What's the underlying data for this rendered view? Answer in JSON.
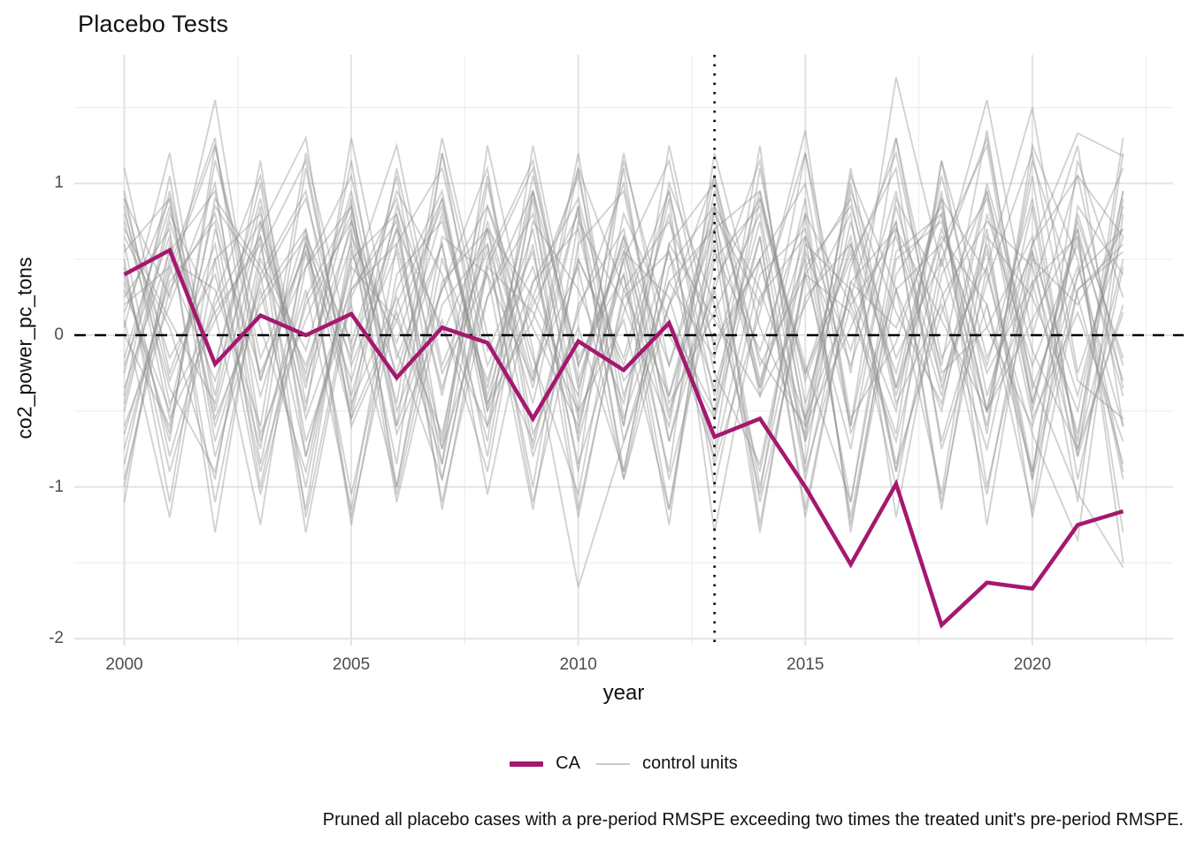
{
  "title": "Placebo Tests",
  "axes": {
    "x_label": "year",
    "y_label": "co2_power_pc_tons",
    "x_tick_labels": [
      "2000",
      "2005",
      "2010",
      "2015",
      "2020"
    ],
    "x_tick_years": [
      2000,
      2005,
      2010,
      2015,
      2020
    ],
    "x_minor_years": [
      2002.5,
      2007.5,
      2012.5,
      2017.5,
      2022.5
    ],
    "y_tick_labels": [
      "1",
      "0",
      "-1",
      "-2"
    ],
    "y_tick_values": [
      1,
      0,
      -1,
      -2
    ],
    "y_minor_values": [
      1.5,
      0.5,
      -0.5,
      -1.5
    ]
  },
  "legend": {
    "treated_label": "CA",
    "control_label": "control units"
  },
  "caption": "Pruned all placebo cases with a pre-period RMSPE exceeding two times the treated unit's pre-period RMSPE.",
  "colors": {
    "treated": "#A5186F",
    "control": "#8F8F8F",
    "control_opacity": 0.42,
    "grid_major": "#E3E3E3",
    "grid_minor": "#F0F0F0",
    "reference_line": "#000000",
    "tick_text": "#4D4D4D",
    "background": "#FFFFFF"
  },
  "chart_data": {
    "type": "line",
    "title": "Placebo Tests",
    "xlabel": "year",
    "ylabel": "co2_power_pc_tons",
    "xlim": [
      1998.9,
      2023.1
    ],
    "ylim": [
      -2.045,
      1.847
    ],
    "grid": true,
    "legend_position": "bottom",
    "hline_y": 0,
    "hline_style": "dashed",
    "vline_x": 2013,
    "vline_style": "dotted",
    "x": [
      2000,
      2001,
      2002,
      2003,
      2004,
      2005,
      2006,
      2007,
      2008,
      2009,
      2010,
      2011,
      2012,
      2013,
      2014,
      2015,
      2016,
      2017,
      2018,
      2019,
      2020,
      2021,
      2022
    ],
    "treated_series": {
      "name": "CA",
      "values": [
        0.4,
        0.56,
        -0.19,
        0.13,
        0.0,
        0.14,
        -0.28,
        0.05,
        -0.05,
        -0.55,
        -0.04,
        -0.23,
        0.08,
        -0.67,
        -0.55,
        -1.0,
        -1.51,
        -0.98,
        -1.91,
        -1.63,
        -1.67,
        -1.25,
        -1.16
      ]
    },
    "control_series": [
      {
        "name": "control-01",
        "values": [
          0.15,
          0.9,
          -0.6,
          0.3,
          -1.0,
          0.55,
          -0.25,
          0.8,
          -0.45,
          0.1,
          1.1,
          -0.7,
          0.35,
          -0.15,
          0.95,
          -0.55,
          0.25,
          1.3,
          -0.35,
          0.6,
          -0.9,
          0.4,
          0.7
        ]
      },
      {
        "name": "control-02",
        "values": [
          -0.75,
          0.4,
          1.25,
          -0.3,
          0.7,
          -1.2,
          0.2,
          0.9,
          -0.5,
          1.05,
          -0.2,
          0.6,
          -0.95,
          0.3,
          1.15,
          -0.6,
          0.05,
          0.75,
          -1.1,
          0.45,
          1.5,
          -0.25,
          0.65
        ]
      },
      {
        "name": "control-03",
        "values": [
          0.9,
          -0.3,
          0.5,
          -1.05,
          0.25,
          0.85,
          -0.6,
          1.2,
          -0.1,
          0.55,
          -0.85,
          0.15,
          0.95,
          -0.4,
          0.65,
          -1.15,
          0.35,
          0.05,
          0.8,
          -0.65,
          1.25,
          0.5,
          -0.95
        ]
      },
      {
        "name": "control-04",
        "values": [
          0.45,
          -0.9,
          0.2,
          0.75,
          -0.5,
          1.3,
          -0.15,
          0.6,
          -1.05,
          0.35,
          0.9,
          -0.3,
          0.1,
          -0.8,
          0.5,
          1.0,
          -0.6,
          0.85,
          -0.2,
          1.35,
          -0.45,
          0.7,
          -1.5
        ]
      },
      {
        "name": "control-05",
        "values": [
          -0.2,
          0.65,
          -1.1,
          0.4,
          0.95,
          -0.55,
          0.15,
          -0.85,
          0.7,
          0.25,
          -0.4,
          1.1,
          -0.7,
          0.55,
          -0.1,
          0.8,
          -1.25,
          0.3,
          0.6,
          -0.5,
          1.05,
          -0.8,
          0.2
        ]
      },
      {
        "name": "control-06",
        "values": [
          0.7,
          0.1,
          -0.45,
          0.85,
          -1.2,
          0.3,
          0.6,
          -0.7,
          1.0,
          -0.25,
          0.45,
          -0.95,
          0.2,
          0.75,
          -0.35,
          1.2,
          -0.55,
          -0.05,
          0.9,
          -1.0,
          0.35,
          0.65,
          -0.3
        ]
      },
      {
        "name": "control-07",
        "values": [
          -0.95,
          0.3,
          0.8,
          -0.4,
          0.6,
          -0.15,
          1.05,
          -0.75,
          0.25,
          0.95,
          -0.5,
          0.1,
          -1.15,
          0.5,
          0.85,
          -0.25,
          0.65,
          -0.9,
          1.15,
          0.05,
          -0.6,
          0.4,
          1.1
        ]
      },
      {
        "name": "control-08",
        "values": [
          0.35,
          -0.65,
          1.15,
          0.05,
          -0.9,
          0.5,
          0.8,
          -0.35,
          0.6,
          -1.1,
          0.2,
          0.7,
          -0.55,
          1.05,
          -0.2,
          0.4,
          -0.75,
          0.9,
          0.3,
          -1.05,
          0.55,
          -0.4,
          0.85
        ]
      },
      {
        "name": "control-09",
        "values": [
          -0.5,
          0.75,
          -0.2,
          1.0,
          -0.7,
          0.2,
          -1.0,
          0.65,
          0.4,
          -0.3,
          0.85,
          -0.6,
          1.25,
          -0.1,
          0.5,
          -0.85,
          0.95,
          0.15,
          -0.45,
          0.7,
          -1.2,
          0.3,
          0.6
        ]
      },
      {
        "name": "control-10",
        "values": [
          0.8,
          -0.15,
          0.4,
          -0.75,
          1.1,
          -0.4,
          0.7,
          0.05,
          -0.6,
          0.9,
          -1.15,
          0.25,
          0.55,
          -0.35,
          0.75,
          -0.95,
          0.45,
          1.2,
          -0.25,
          0.05,
          0.65,
          -0.7,
          1.3
        ]
      },
      {
        "name": "control-11",
        "values": [
          0.05,
          1.2,
          -0.5,
          0.65,
          -0.25,
          0.9,
          -1.05,
          0.35,
          0.7,
          -0.8,
          0.15,
          1.0,
          -0.4,
          0.6,
          -1.3,
          0.45,
          0.85,
          -0.15,
          0.5,
          -0.6,
          1.15,
          0.25,
          -0.85
        ]
      },
      {
        "name": "control-12",
        "values": [
          -0.35,
          0.55,
          0.95,
          -0.7,
          0.3,
          -1.15,
          0.6,
          1.1,
          -0.2,
          0.45,
          -0.65,
          0.8,
          0.1,
          -0.5,
          1.25,
          -0.9,
          0.2,
          0.65,
          -0.4,
          1.0,
          -0.1,
          -0.75,
          0.5
        ]
      },
      {
        "name": "control-13",
        "values": [
          0.6,
          -0.8,
          0.25,
          1.05,
          -0.45,
          0.75,
          -0.1,
          -0.95,
          0.5,
          1.15,
          -0.3,
          0.65,
          -0.7,
          0.35,
          0.9,
          -0.2,
          -1.1,
          0.55,
          0.8,
          -0.5,
          0.3,
          1.25,
          -0.6
        ]
      },
      {
        "name": "control-14",
        "values": [
          -1.0,
          0.45,
          -0.3,
          0.7,
          1.3,
          -0.6,
          0.1,
          0.85,
          -0.4,
          0.6,
          -1.2,
          0.3,
          0.75,
          -0.05,
          0.5,
          -0.7,
          1.1,
          -0.35,
          0.65,
          0.2,
          -0.9,
          0.8,
          -0.2
        ]
      },
      {
        "name": "control-15",
        "values": [
          0.25,
          0.7,
          -1.3,
          0.5,
          -0.1,
          0.95,
          -0.5,
          0.3,
          1.1,
          -0.65,
          0.05,
          -0.9,
          0.6,
          1.0,
          -0.4,
          0.2,
          0.8,
          -1.2,
          0.4,
          0.9,
          -0.55,
          0.15,
          -0.7
        ]
      },
      {
        "name": "control-16",
        "values": [
          0.95,
          -0.45,
          0.15,
          0.6,
          -0.8,
          0.35,
          1.25,
          -0.2,
          0.55,
          -1.0,
          0.75,
          0.2,
          -0.6,
          0.95,
          -0.3,
          0.5,
          -1.1,
          0.7,
          0.1,
          -0.5,
          0.85,
          -0.95,
          0.45
        ]
      },
      {
        "name": "control-17",
        "values": [
          -0.15,
          0.85,
          -0.55,
          0.2,
          0.65,
          -1.25,
          0.4,
          0.75,
          -0.35,
          0.95,
          -0.7,
          0.5,
          1.15,
          -0.25,
          -0.85,
          0.6,
          0.3,
          -0.5,
          1.05,
          -0.15,
          0.55,
          -1.1,
          0.9
        ]
      },
      {
        "name": "control-18",
        "values": [
          0.5,
          -1.1,
          0.7,
          -0.25,
          0.45,
          0.85,
          -0.65,
          0.1,
          -0.9,
          0.75,
          0.3,
          -0.45,
          0.9,
          -1.3,
          0.25,
          0.65,
          -0.1,
          0.95,
          -0.7,
          0.35,
          1.2,
          -0.3,
          -0.55
        ]
      },
      {
        "name": "control-19",
        "values": [
          -0.6,
          0.2,
          1.0,
          -0.85,
          0.55,
          -0.3,
          0.8,
          -1.15,
          0.45,
          0.15,
          -0.5,
          1.2,
          -0.2,
          0.7,
          -1.0,
          0.4,
          0.9,
          -0.45,
          0.2,
          -0.75,
          0.6,
          1.05,
          -0.35
        ]
      },
      {
        "name": "control-20",
        "values": [
          0.3,
          -0.5,
          0.85,
          0.4,
          -1.15,
          0.65,
          -0.05,
          0.9,
          -0.6,
          0.25,
          1.05,
          -0.4,
          0.55,
          -0.85,
          0.15,
          1.35,
          -0.65,
          0.3,
          -1.05,
          0.8,
          -0.2,
          0.6,
          -0.9
        ]
      },
      {
        "name": "control-21",
        "values": [
          1.1,
          -0.25,
          0.6,
          -0.9,
          0.2,
          0.75,
          -0.45,
          1.3,
          0.0,
          -0.7,
          0.5,
          -0.15,
          0.95,
          -0.55,
          0.65,
          -1.2,
          0.35,
          0.7,
          -0.3,
          0.55,
          -0.95,
          1.15,
          0.25
        ]
      },
      {
        "name": "control-22",
        "values": [
          -0.4,
          1.05,
          -0.7,
          0.35,
          0.9,
          -0.2,
          0.55,
          -1.1,
          0.25,
          0.8,
          -0.55,
          0.4,
          -0.9,
          1.2,
          0.05,
          -0.65,
          0.75,
          -0.35,
          0.95,
          -1.25,
          0.5,
          0.2,
          0.7
        ]
      },
      {
        "name": "control-23",
        "values": [
          0.65,
          0.05,
          -0.95,
          0.75,
          -0.35,
          1.15,
          -0.6,
          0.3,
          0.85,
          -0.15,
          -1.05,
          0.55,
          0.25,
          -0.75,
          1.1,
          -0.45,
          0.6,
          -0.25,
          0.9,
          0.4,
          -0.65,
          -1.35,
          0.8
        ]
      },
      {
        "name": "control-24",
        "values": [
          -0.85,
          0.5,
          0.3,
          -0.6,
          1.2,
          -0.1,
          0.7,
          -0.95,
          0.45,
          1.1,
          -0.35,
          0.65,
          -0.2,
          0.85,
          -1.25,
          0.4,
          0.15,
          -0.7,
          0.6,
          1.25,
          -0.5,
          0.75,
          -0.15
        ]
      },
      {
        "name": "control-25",
        "values": [
          0.4,
          -0.7,
          1.25,
          -0.15,
          0.55,
          -1.05,
          0.3,
          0.95,
          -0.5,
          0.2,
          0.8,
          -0.9,
          0.6,
          0.1,
          -0.4,
          0.9,
          -1.3,
          0.5,
          0.75,
          -0.25,
          0.35,
          -0.8,
          1.2
        ]
      },
      {
        "name": "control-26",
        "values": [
          -0.25,
          0.95,
          -0.4,
          1.15,
          -0.8,
          0.45,
          0.1,
          -0.65,
          0.75,
          -0.3,
          1.2,
          -0.55,
          0.35,
          0.7,
          -1.1,
          0.25,
          0.6,
          -0.85,
          0.15,
          0.95,
          -0.45,
          0.65,
          -1.3
        ]
      },
      {
        "name": "control-27",
        "values": [
          0.85,
          -0.55,
          0.1,
          0.65,
          -1.3,
          0.25,
          0.9,
          -0.4,
          1.05,
          -0.75,
          0.5,
          -0.2,
          0.8,
          -1.0,
          0.4,
          0.7,
          -0.6,
          1.3,
          -0.15,
          0.45,
          -0.95,
          0.3,
          0.55
        ]
      },
      {
        "name": "control-28",
        "values": [
          0.1,
          -1.2,
          0.5,
          0.8,
          -0.3,
          0.6,
          -0.85,
          1.2,
          -0.45,
          0.35,
          0.7,
          -0.6,
          1.0,
          0.2,
          -0.9,
          0.55,
          -0.2,
          0.75,
          -1.15,
          0.65,
          0.25,
          -0.5,
          0.95
        ]
      },
      {
        "name": "control-29",
        "values": [
          -0.65,
          0.35,
          0.75,
          -1.0,
          0.45,
          1.05,
          -0.3,
          0.6,
          -0.8,
          0.95,
          -0.15,
          0.4,
          -1.25,
          0.85,
          0.3,
          -0.55,
          1.0,
          -0.4,
          0.7,
          -0.2,
          0.9,
          -0.75,
          0.15
        ]
      },
      {
        "name": "control-30",
        "values": [
          0.55,
          0.9,
          -0.8,
          0.25,
          0.7,
          -0.5,
          1.1,
          -0.25,
          0.4,
          -1.15,
          0.6,
          0.95,
          -0.45,
          0.15,
          0.8,
          -0.7,
          0.3,
          -1.0,
          0.5,
          1.3,
          -0.35,
          0.45,
          -0.6
        ]
      },
      {
        "name": "control-31",
        "values": [
          -1.1,
          0.6,
          -0.2,
          0.9,
          -0.55,
          0.3,
          0.75,
          -0.85,
          1.25,
          -0.1,
          -1.66,
          -0.7,
          0.2,
          1.05,
          -0.35,
          0.65,
          -1.2,
          0.4,
          0.85,
          -0.5,
          0.1,
          0.7,
          -0.4
        ]
      },
      {
        "name": "control-32",
        "values": [
          0.2,
          0.45,
          1.3,
          -0.65,
          0.1,
          0.8,
          -1.0,
          0.5,
          -0.3,
          0.7,
          -0.9,
          1.15,
          0.0,
          -0.55,
          0.9,
          -0.25,
          0.5,
          1.1,
          -0.75,
          0.2,
          -1.15,
          0.85,
          0.4
        ]
      },
      {
        "name": "control-33",
        "values": [
          0.75,
          -0.35,
          -0.9,
          0.55,
          1.15,
          -0.45,
          0.25,
          -0.75,
          0.85,
          0.05,
          -0.6,
          0.5,
          -1.15,
          0.7,
          0.95,
          -0.3,
          0.55,
          -0.9,
          0.25,
          0.75,
          0.45,
          -0.65,
          0.95
        ]
      },
      {
        "name": "control-34",
        "values": [
          -0.45,
          0.8,
          0.15,
          -1.25,
          0.65,
          -0.05,
          0.95,
          0.4,
          -0.7,
          1.25,
          -0.2,
          0.55,
          -0.5,
          0.3,
          -1.05,
          0.8,
          0.2,
          -0.65,
          1.15,
          -0.4,
          0.6,
          1.33,
          1.18
        ]
      },
      {
        "name": "control-35",
        "values": [
          0.0,
          -0.6,
          0.9,
          0.45,
          -0.2,
          0.7,
          -1.1,
          0.2,
          0.6,
          -0.45,
          0.85,
          -0.95,
          0.45,
          0.85,
          -0.15,
          -0.6,
          1.05,
          0.3,
          -0.5,
          0.95,
          -0.3,
          -1.04,
          -1.53
        ]
      },
      {
        "name": "control-36",
        "values": [
          0.9,
          0.25,
          1.55,
          -0.3,
          0.6,
          -0.55,
          0.85,
          0.0,
          0.7,
          -0.35,
          1.1,
          0.3,
          -0.4,
          0.8,
          0.2,
          1.2,
          -0.25,
          1.7,
          0.45,
          1.55,
          0.0,
          1.05,
          0.65
        ]
      }
    ]
  }
}
